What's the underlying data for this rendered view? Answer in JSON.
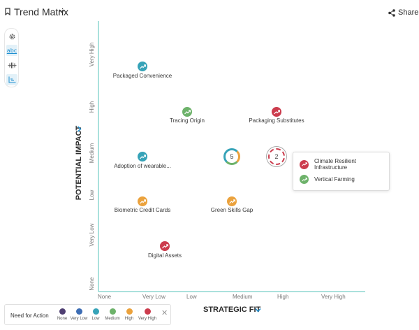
{
  "header": {
    "title": "Trend Matrix",
    "share_label": "Share"
  },
  "toolbar": {
    "items": [
      {
        "icon": "gear-icon"
      },
      {
        "icon": "text-labels-icon",
        "label": "abc"
      },
      {
        "icon": "spread-icon"
      },
      {
        "icon": "chart-icon"
      }
    ]
  },
  "axes": {
    "y_title": "POTENTIAL IMPACT",
    "x_title": "STRATEGIC FIT",
    "y_ticks": [
      "Very High",
      "High",
      "Medium",
      "Low",
      "Very Low",
      "None"
    ],
    "x_ticks": [
      "None",
      "Very Low",
      "Low",
      "Medium",
      "High",
      "Very High"
    ]
  },
  "colors": {
    "none": "#4f3f72",
    "very_low": "#3d6db4",
    "low": "#36a3b8",
    "medium": "#6db26a",
    "high": "#eba23d",
    "very_high": "#cc3c4d",
    "axis": "#55c3b9"
  },
  "points": [
    {
      "label": "Packaged Convenience",
      "color": "#36a3b8"
    },
    {
      "label": "Tracing Origin",
      "color": "#6db26a"
    },
    {
      "label": "Packaging Substitutes",
      "color": "#cc3c4d"
    },
    {
      "label": "Adoption of wearable...",
      "color": "#36a3b8"
    },
    {
      "label": "Biometric Credit Cards",
      "color": "#eba23d"
    },
    {
      "label": "Green Skills Gap",
      "color": "#eba23d"
    },
    {
      "label": "Digital Assets",
      "color": "#cc3c4d"
    }
  ],
  "clusters": [
    {
      "count": "5"
    },
    {
      "count": "2"
    }
  ],
  "popup": {
    "items": [
      {
        "label": "Climate Resilient Infrastructure",
        "color": "#cc3c4d"
      },
      {
        "label": "Vertical Farming",
        "color": "#6db26a"
      }
    ]
  },
  "legend": {
    "title": "Need for Action",
    "items": [
      {
        "label": "None",
        "color": "#4f3f72"
      },
      {
        "label": "Very Low",
        "color": "#3d6db4"
      },
      {
        "label": "Low",
        "color": "#36a3b8"
      },
      {
        "label": "Medium",
        "color": "#6db26a"
      },
      {
        "label": "High",
        "color": "#eba23d"
      },
      {
        "label": "Very High",
        "color": "#cc3c4d"
      }
    ]
  }
}
